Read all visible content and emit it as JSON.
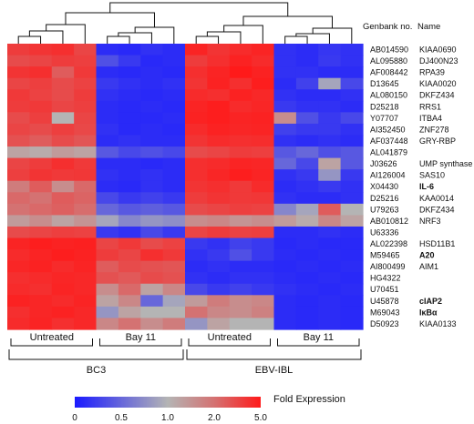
{
  "chart_data": {
    "type": "heatmap",
    "column_headers": {
      "genbank": "Genbank no.",
      "name": "Name"
    },
    "samples_per_condition": 4,
    "condition_labels": [
      "Untreated",
      "Bay 11",
      "Untreated",
      "Bay 11"
    ],
    "cell_line_labels": [
      "BC3",
      "EBV-IBL"
    ],
    "rows": [
      {
        "genbank": "AB014590",
        "name": "KIAA0690",
        "bold": false,
        "values": [
          3.5,
          3.8,
          4.0,
          3.2,
          0.12,
          0.1,
          0.15,
          0.12,
          4.5,
          3.8,
          4.2,
          4.5,
          0.15,
          0.12,
          0.18,
          0.15
        ]
      },
      {
        "genbank": "AL095880",
        "name": "DJ400N23",
        "bold": false,
        "values": [
          3.0,
          3.2,
          3.5,
          3.4,
          0.35,
          0.2,
          0.1,
          0.12,
          3.5,
          4.0,
          4.6,
          4.2,
          0.15,
          0.12,
          0.2,
          0.15
        ]
      },
      {
        "genbank": "AF008442",
        "name": "RPA39",
        "bold": false,
        "values": [
          3.8,
          4.0,
          2.5,
          3.6,
          0.12,
          0.1,
          0.12,
          0.1,
          4.0,
          4.5,
          5.0,
          4.6,
          0.15,
          0.15,
          0.12,
          0.12
        ]
      },
      {
        "genbank": "D13645",
        "name": "KIAA0020",
        "bold": false,
        "values": [
          3.2,
          3.4,
          3.0,
          3.3,
          0.2,
          0.15,
          0.12,
          0.15,
          3.8,
          4.6,
          4.0,
          4.8,
          0.12,
          0.25,
          0.9,
          0.3
        ]
      },
      {
        "genbank": "AL080150",
        "name": "DKFZ434",
        "bold": false,
        "values": [
          3.6,
          3.3,
          3.0,
          3.5,
          0.15,
          0.12,
          0.1,
          0.12,
          4.2,
          4.0,
          4.6,
          4.3,
          0.15,
          0.12,
          0.12,
          0.15
        ]
      },
      {
        "genbank": "D25218",
        "name": "RRS1",
        "bold": false,
        "values": [
          3.5,
          3.6,
          3.2,
          3.4,
          0.12,
          0.1,
          0.12,
          0.1,
          4.5,
          4.8,
          4.2,
          4.4,
          0.2,
          0.15,
          0.15,
          0.12
        ]
      },
      {
        "genbank": "Y07707",
        "name": "ITBA4",
        "bold": false,
        "values": [
          3.0,
          3.4,
          1.0,
          3.2,
          0.12,
          0.1,
          0.1,
          0.12,
          4.6,
          4.8,
          4.5,
          4.6,
          1.5,
          0.35,
          0.2,
          0.3
        ]
      },
      {
        "genbank": "AI352450",
        "name": "ZNF278",
        "bold": false,
        "values": [
          3.2,
          3.0,
          3.4,
          3.1,
          0.15,
          0.1,
          0.12,
          0.1,
          4.2,
          4.6,
          4.4,
          4.5,
          0.25,
          0.2,
          0.2,
          0.15
        ]
      },
      {
        "genbank": "AF037448",
        "name": "GRY-RBP",
        "bold": false,
        "values": [
          2.8,
          2.5,
          3.0,
          2.7,
          0.12,
          0.15,
          0.12,
          0.12,
          3.8,
          4.2,
          4.0,
          4.1,
          0.15,
          0.12,
          0.15,
          0.12
        ]
      },
      {
        "genbank": "AL041879",
        "name": "",
        "bold": false,
        "values": [
          1.2,
          1.1,
          1.3,
          1.2,
          0.4,
          0.3,
          0.35,
          0.3,
          3.0,
          3.2,
          3.5,
          3.4,
          0.4,
          0.5,
          0.35,
          0.4
        ]
      },
      {
        "genbank": "J03626",
        "name": "UMP synthase",
        "bold": false,
        "values": [
          3.2,
          3.5,
          4.0,
          3.6,
          0.12,
          0.12,
          0.1,
          0.12,
          4.0,
          4.2,
          4.5,
          4.4,
          0.5,
          0.3,
          1.2,
          0.4
        ]
      },
      {
        "genbank": "AI126004",
        "name": "SAS10",
        "bold": false,
        "values": [
          3.4,
          3.8,
          3.6,
          3.7,
          0.15,
          0.12,
          0.15,
          0.12,
          4.0,
          4.4,
          4.8,
          4.5,
          0.15,
          0.2,
          0.8,
          0.2
        ]
      },
      {
        "genbank": "X04430",
        "name": "IL-6",
        "bold": true,
        "values": [
          1.8,
          2.5,
          1.5,
          2.2,
          0.12,
          0.1,
          0.15,
          0.12,
          3.8,
          4.0,
          3.6,
          4.2,
          0.12,
          0.15,
          0.2,
          0.15
        ]
      },
      {
        "genbank": "D25216",
        "name": "KAA0014",
        "bold": false,
        "values": [
          2.2,
          2.0,
          2.5,
          2.3,
          0.3,
          0.2,
          0.25,
          0.2,
          3.5,
          3.8,
          3.6,
          3.7,
          0.15,
          0.12,
          0.12,
          0.15
        ]
      },
      {
        "genbank": "U79263",
        "name": "DKFZ434",
        "bold": false,
        "values": [
          2.0,
          2.2,
          2.4,
          2.1,
          0.5,
          0.4,
          0.45,
          0.4,
          3.0,
          3.2,
          3.4,
          3.3,
          0.7,
          0.9,
          2.5,
          1.0
        ]
      },
      {
        "genbank": "AB010812",
        "name": "NRF3",
        "bold": false,
        "values": [
          1.3,
          1.5,
          1.2,
          1.4,
          0.9,
          0.7,
          0.8,
          0.75,
          1.5,
          1.6,
          1.4,
          1.5,
          1.3,
          1.1,
          1.6,
          1.2
        ]
      },
      {
        "genbank": "U63336",
        "name": "",
        "bold": false,
        "values": [
          3.0,
          3.2,
          3.4,
          3.3,
          0.2,
          0.15,
          0.3,
          0.2,
          3.2,
          3.5,
          3.3,
          3.4,
          0.12,
          0.12,
          0.15,
          0.12
        ]
      },
      {
        "genbank": "AL022398",
        "name": "HSD11B1",
        "bold": false,
        "values": [
          4.5,
          4.8,
          4.6,
          4.7,
          3.2,
          3.6,
          3.0,
          3.3,
          0.2,
          0.15,
          0.25,
          0.2,
          0.1,
          0.12,
          0.1,
          0.1
        ]
      },
      {
        "genbank": "M59465",
        "name": "A20",
        "bold": true,
        "values": [
          4.2,
          4.5,
          4.8,
          4.6,
          3.5,
          3.2,
          4.0,
          3.6,
          0.15,
          0.2,
          0.35,
          0.2,
          0.12,
          0.1,
          0.12,
          0.1
        ]
      },
      {
        "genbank": "AI800499",
        "name": "AIM1",
        "bold": false,
        "values": [
          4.4,
          4.6,
          4.2,
          4.5,
          2.5,
          3.0,
          2.8,
          2.7,
          0.12,
          0.15,
          0.12,
          0.12,
          0.1,
          0.12,
          0.1,
          0.12
        ]
      },
      {
        "genbank": "HG4322",
        "name": "",
        "bold": false,
        "values": [
          4.0,
          4.2,
          4.4,
          4.3,
          2.8,
          2.6,
          3.0,
          2.8,
          0.15,
          0.12,
          0.15,
          0.15,
          0.12,
          0.1,
          0.12,
          0.1
        ]
      },
      {
        "genbank": "U70451",
        "name": "",
        "bold": false,
        "values": [
          4.2,
          4.0,
          4.5,
          4.3,
          1.5,
          2.2,
          1.2,
          1.6,
          0.3,
          0.2,
          0.25,
          0.2,
          0.15,
          0.12,
          0.1,
          0.12
        ]
      },
      {
        "genbank": "U45878",
        "name": "cIAP2",
        "bold": true,
        "values": [
          4.6,
          4.4,
          4.2,
          4.5,
          1.2,
          1.6,
          0.5,
          0.9,
          1.3,
          1.8,
          1.5,
          1.6,
          0.12,
          0.1,
          0.12,
          0.1
        ]
      },
      {
        "genbank": "M69043",
        "name": "IκBα",
        "bold": true,
        "values": [
          4.0,
          4.4,
          4.6,
          4.3,
          0.8,
          1.2,
          1.0,
          1.0,
          2.0,
          1.6,
          1.5,
          1.7,
          0.12,
          0.1,
          0.12,
          0.1
        ]
      },
      {
        "genbank": "D50923",
        "name": "KIAA0133",
        "bold": false,
        "values": [
          4.2,
          4.5,
          4.0,
          4.3,
          1.6,
          2.0,
          1.5,
          1.8,
          0.8,
          1.2,
          1.0,
          1.0,
          0.12,
          0.1,
          0.12,
          0.1
        ]
      }
    ],
    "colorbar": {
      "label": "Fold Expression",
      "ticks": [
        {
          "value": 0,
          "label": "0"
        },
        {
          "value": 0.5,
          "label": "0.5"
        },
        {
          "value": 1.0,
          "label": "1.0"
        },
        {
          "value": 2.0,
          "label": "2.0"
        },
        {
          "value": 5.0,
          "label": "5.0"
        }
      ]
    },
    "colors": {
      "low": "#1a1aff",
      "mid": "#b4b4b4",
      "high": "#ff1a1a"
    }
  }
}
